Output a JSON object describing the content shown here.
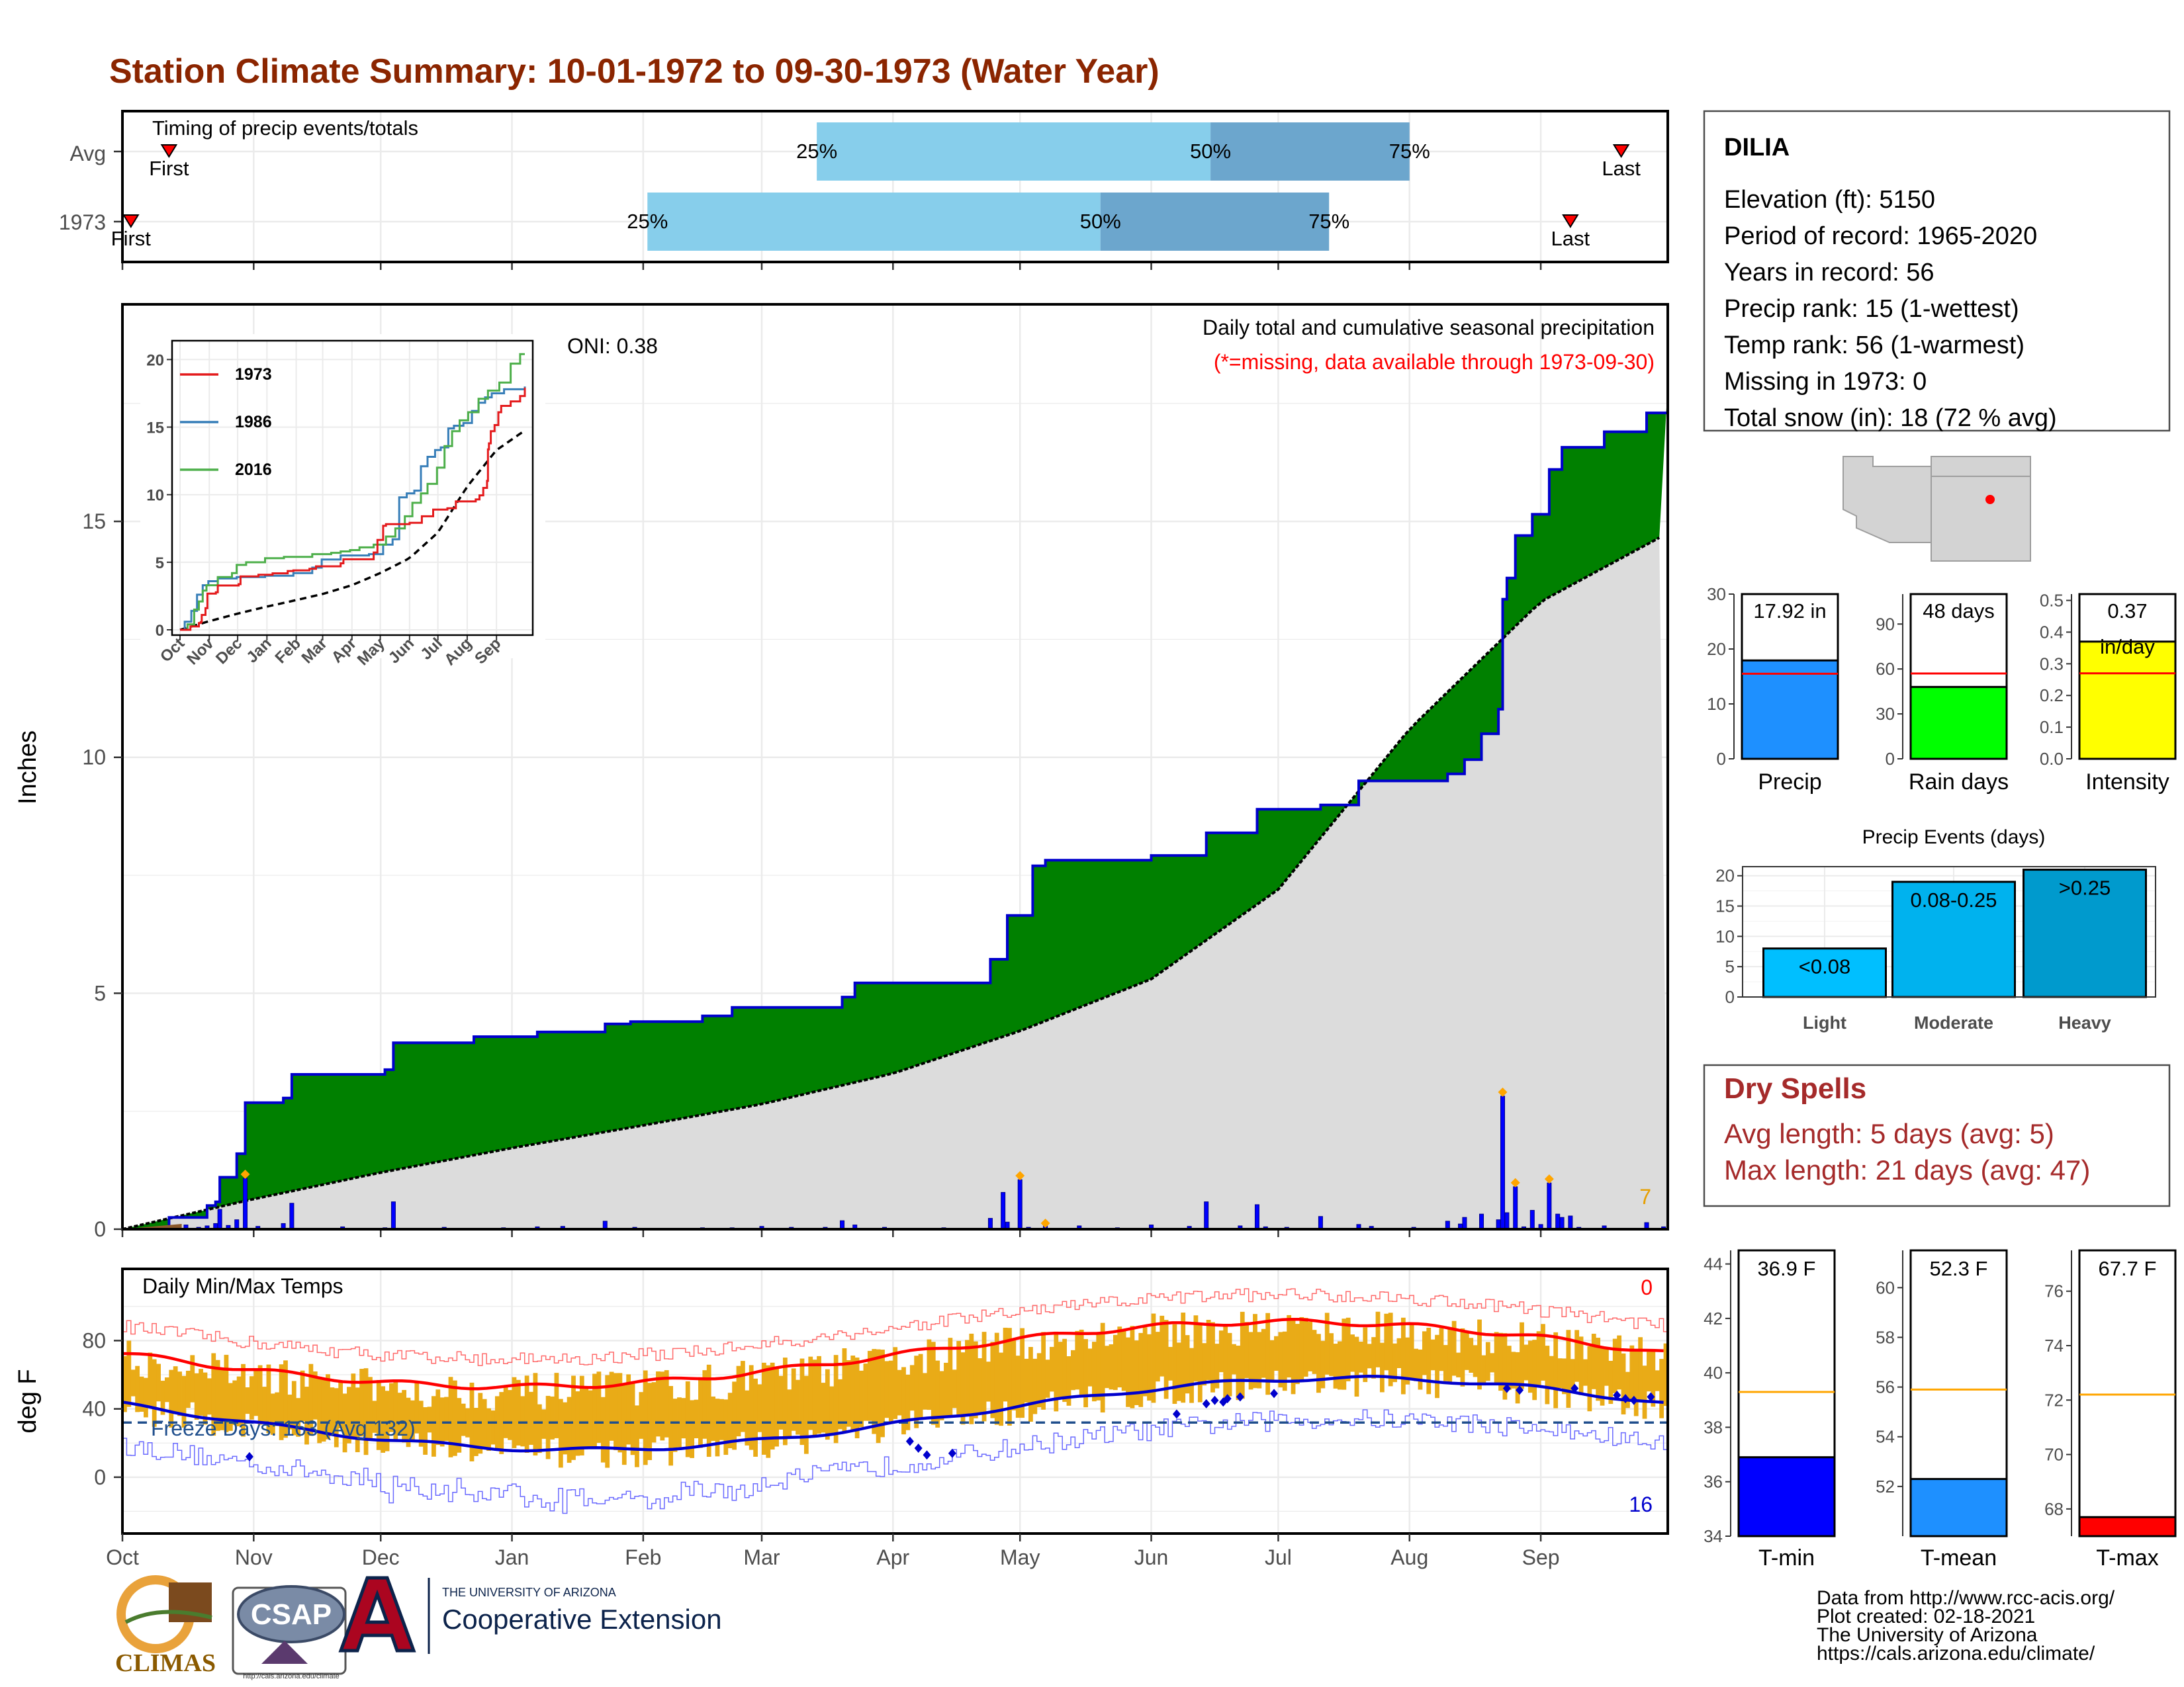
{
  "title": "Station Climate Summary: 10-01-1972 to 09-30-1973 (Water Year)",
  "colors": {
    "title": "#8B2500",
    "precip_fill": "#008000",
    "precip_line": "#0000CD",
    "normal_fill": "#DCDCDC",
    "quartile_light": "#87CEEB",
    "quartile_dark": "#6CA6CD",
    "tmax_avg": "#FF0000",
    "tmin_avg": "#0000CD",
    "temp_bar": "#E9AB17",
    "dry_spells": "#A52A2A"
  },
  "timing": {
    "label": "Timing of precip events/totals",
    "rows": [
      {
        "name": "Avg",
        "first_label": "First",
        "last_label": "Last",
        "first_day": 11,
        "last_day": 354,
        "q25_day": 164,
        "q50_day": 257,
        "q75_day": 304,
        "q25_label": "25%",
        "q50_label": "50%",
        "q75_label": "75%"
      },
      {
        "name": "1973",
        "first_label": "First",
        "last_label": "Last",
        "first_day": 2,
        "last_day": 342,
        "q25_day": 124,
        "q50_day": 231,
        "q75_day": 285,
        "q25_label": "25%",
        "q50_label": "50%",
        "q75_label": "75%"
      }
    ]
  },
  "precip_panel": {
    "subtitle": "Daily total and cumulative seasonal precipitation",
    "missing_note": "(*=missing, data available through 1973-09-30)",
    "oni": "ONI: 0.38",
    "ylabel": "Inches",
    "yticks": [
      "0",
      "5",
      "10",
      "15"
    ],
    "ylim": [
      0,
      19.6
    ],
    "count_label": "7",
    "inset": {
      "xticks": [
        "Oct",
        "Nov",
        "Dec",
        "Jan",
        "Feb",
        "Mar",
        "Apr",
        "May",
        "Jun",
        "Jul",
        "Aug",
        "Sep"
      ],
      "yticks": [
        "0",
        "5",
        "10",
        "15",
        "20"
      ],
      "legend": [
        {
          "name": "1973",
          "color": "#E41A1C"
        },
        {
          "name": "1986",
          "color": "#377EB8"
        },
        {
          "name": "2016",
          "color": "#4DAF4A"
        }
      ]
    }
  },
  "temp_panel": {
    "title": "Daily Min/Max Temps",
    "ylabel": "deg F",
    "yticks": [
      "0",
      "40",
      "80"
    ],
    "freeze_label": "Freeze Days: 163 (Avg 132)",
    "max_count": "0",
    "min_count": "16",
    "xticks": [
      "Oct",
      "Nov",
      "Dec",
      "Jan",
      "Feb",
      "Mar",
      "Apr",
      "May",
      "Jun",
      "Jul",
      "Aug",
      "Sep"
    ]
  },
  "station": {
    "name": "DILIA",
    "lines": [
      "Elevation (ft): 5150",
      "Period of record: 1965-2020",
      "Years in record: 56",
      "Precip rank: 15 (1-wettest)",
      "Temp rank: 56 (1-warmest)",
      "Missing in 1973: 0",
      "Total snow (in): 18 (72 % avg)"
    ]
  },
  "summary_bars": [
    {
      "name": "Precip",
      "value_label": "17.92 in",
      "value": 17.92,
      "avg": 15.5,
      "ymax": 30,
      "yticks": [
        "0",
        "10",
        "20",
        "30"
      ],
      "color": "#1E90FF"
    },
    {
      "name": "Rain days",
      "value_label": "48 days",
      "value": 48,
      "avg": 57,
      "ymax": 110,
      "yticks": [
        "0",
        "30",
        "60",
        "90"
      ],
      "color": "#00FF00"
    },
    {
      "name": "Intensity",
      "value_label": "0.37",
      "value_label2": "in/day",
      "value": 0.37,
      "avg": 0.27,
      "ymax": 0.52,
      "yticks": [
        "0.0",
        "0.1",
        "0.2",
        "0.3",
        "0.4",
        "0.5"
      ],
      "color": "#FFFF00"
    }
  ],
  "precip_events": {
    "title": "Precip Events (days)",
    "categories": [
      "Light",
      "Moderate",
      "Heavy"
    ],
    "labels": [
      "<0.08",
      "0.08-0.25",
      ">0.25"
    ],
    "values": [
      8,
      19,
      21
    ],
    "yticks": [
      "0",
      "5",
      "10",
      "15",
      "20"
    ],
    "colors": [
      "#00BFFF",
      "#00B2EE",
      "#009ACD"
    ]
  },
  "dry_spells": {
    "title": "Dry Spells",
    "avg_length": "Avg length: 5 days (avg: 5)",
    "max_length": "Max length: 21 days (avg: 47)"
  },
  "temp_bars": [
    {
      "name": "T-min",
      "value_label": "36.9 F",
      "value": 36.9,
      "avg": 39.3,
      "ymin": 34,
      "ymax": 44.5,
      "ticks": [
        34,
        36,
        38,
        40,
        42,
        44
      ],
      "color": "#0000FF"
    },
    {
      "name": "T-mean",
      "value_label": "52.3 F",
      "value": 52.3,
      "avg": 55.9,
      "ymin": 50,
      "ymax": 61.5,
      "ticks": [
        52,
        54,
        56,
        58,
        60
      ],
      "color": "#1E90FF"
    },
    {
      "name": "T-max",
      "value_label": "67.7 F",
      "value": 67.7,
      "avg": 72.2,
      "ymin": 67,
      "ymax": 77.5,
      "ticks": [
        68,
        70,
        72,
        74,
        76
      ],
      "color": "#FF0000"
    }
  ],
  "credits": [
    "Data from http://www.rcc-acis.org/",
    "Plot created: 02-18-2021",
    "The University of Arizona",
    "https://cals.arizona.edu/climate/"
  ],
  "logos": {
    "climas": "CLIMAS",
    "csap": "CSAP",
    "csap_url": "http://cals.arizona.edu/climate",
    "ua_small": "THE UNIVERSITY OF ARIZONA",
    "ua_big": "Cooperative Extension"
  }
}
